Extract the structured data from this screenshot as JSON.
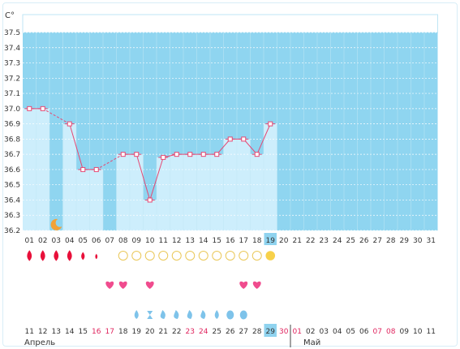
{
  "chart_data": {
    "type": "line",
    "unit_label": "C°",
    "y_ticks": [
      "37.5",
      "37.4",
      "37.3",
      "37.2",
      "37.1",
      "37.0",
      "36.9",
      "36.8",
      "36.7",
      "36.6",
      "36.5",
      "36.4",
      "36.3",
      "36.2"
    ],
    "ylim": [
      36.2,
      37.5
    ],
    "cycle_days": [
      "01",
      "02",
      "03",
      "04",
      "05",
      "06",
      "07",
      "08",
      "09",
      "10",
      "11",
      "12",
      "13",
      "14",
      "15",
      "16",
      "17",
      "18",
      "19",
      "20",
      "21",
      "22",
      "23",
      "24",
      "25",
      "26",
      "27",
      "28",
      "29",
      "30",
      "31"
    ],
    "current_day_index": 18,
    "temperatures": [
      37.0,
      37.0,
      null,
      36.9,
      36.6,
      36.6,
      null,
      36.7,
      36.7,
      36.4,
      36.68,
      36.7,
      36.7,
      36.7,
      36.7,
      36.8,
      36.8,
      36.7,
      36.9
    ],
    "calendar_dates": [
      "11",
      "12",
      "13",
      "14",
      "15",
      "16",
      "17",
      "18",
      "19",
      "20",
      "21",
      "22",
      "23",
      "24",
      "25",
      "26",
      "27",
      "28",
      "29",
      "30",
      "01",
      "02",
      "03",
      "04",
      "05",
      "06",
      "07",
      "08",
      "09",
      "10",
      "11"
    ],
    "red_dates": [
      5,
      6,
      12,
      13,
      19,
      20,
      26,
      27
    ],
    "today_date_index": 18,
    "months": {
      "april": "Апрель",
      "may": "Май"
    },
    "moon_day_index": 2,
    "bleeding": [
      3,
      3,
      3,
      3,
      2,
      1
    ],
    "ovulation_test_count": 11,
    "sun_index": 18,
    "heart_days": [
      6,
      7,
      9,
      16,
      17
    ],
    "discharge_icons": [
      {
        "day": 8,
        "icon": "drop-full-icon"
      },
      {
        "day": 9,
        "icon": "hourglass-icon"
      },
      {
        "day": 10,
        "icon": "half-drop-icon"
      },
      {
        "day": 11,
        "icon": "half-drop-icon"
      },
      {
        "day": 12,
        "icon": "half-drop-icon"
      },
      {
        "day": 13,
        "icon": "half-drop-icon"
      },
      {
        "day": 14,
        "icon": "drop-full-icon"
      },
      {
        "day": 15,
        "icon": "egg-icon"
      },
      {
        "day": 16,
        "icon": "egg-icon"
      }
    ],
    "colors": {
      "sky": "#8fd5f0",
      "bar": "#cdeefc",
      "line": "#e64873",
      "blood": "#e8103a",
      "sun": "#f7d14a",
      "heart": "#f04c8e",
      "discharge": "#7ec3ea"
    }
  }
}
